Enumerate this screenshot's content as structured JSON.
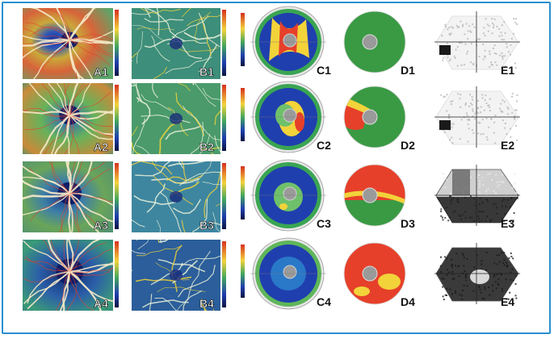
{
  "figure": {
    "rows": [
      {
        "labels": [
          "A1",
          "B1",
          "C1",
          "D1",
          "E1"
        ]
      },
      {
        "labels": [
          "A2",
          "B2",
          "C2",
          "D2",
          "E2"
        ]
      },
      {
        "labels": [
          "A3",
          "B3",
          "C3",
          "D3",
          "E3"
        ]
      },
      {
        "labels": [
          "A4",
          "B4",
          "C4",
          "D4",
          "E4"
        ]
      }
    ]
  },
  "colors": {
    "frame": "#2a8fd0",
    "heat_red": "#e6402a",
    "heat_yellow": "#f2d33a",
    "heat_green": "#3aa552",
    "heat_blue": "#1f3fae",
    "heat_navy": "#182a7a"
  }
}
